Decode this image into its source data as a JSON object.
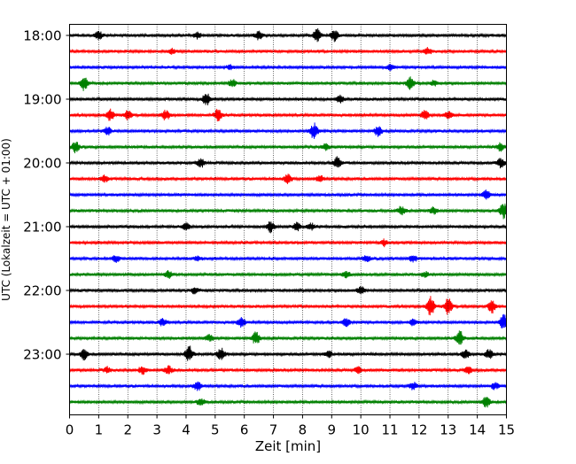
{
  "chart_data": {
    "type": "line",
    "xlabel": "Zeit  [min]",
    "ylabel": "UTC (Lokalzeit = UTC + 01:00)",
    "xlim": [
      0,
      15
    ],
    "x_ticks": [
      0,
      1,
      2,
      3,
      4,
      5,
      6,
      7,
      8,
      9,
      10,
      11,
      12,
      13,
      14,
      15
    ],
    "x_tick_labels": [
      "0",
      "1",
      "2",
      "3",
      "4",
      "5",
      "6",
      "7",
      "8",
      "9",
      "10",
      "11",
      "12",
      "13",
      "14",
      "15"
    ],
    "y_tick_labels": [
      "18:00",
      "19:00",
      "20:00",
      "21:00",
      "22:00",
      "23:00"
    ],
    "vertical_grid": true,
    "row_start_hour": 18,
    "row_interval_min": 15,
    "row_count": 24,
    "row_colors": [
      "#000000",
      "#ff0000",
      "#0000ff",
      "#008000"
    ],
    "bursts": [
      [
        [
          1.0,
          0.6
        ],
        [
          4.4,
          0.5
        ],
        [
          6.5,
          0.7
        ],
        [
          8.5,
          1.0
        ],
        [
          9.1,
          0.9
        ]
      ],
      [
        [
          3.5,
          0.4
        ],
        [
          12.3,
          0.5
        ]
      ],
      [
        [
          5.5,
          0.3
        ],
        [
          11.0,
          0.4
        ]
      ],
      [
        [
          0.5,
          1.1
        ],
        [
          5.6,
          0.6
        ],
        [
          11.7,
          0.9
        ],
        [
          12.5,
          0.4
        ]
      ],
      [
        [
          4.7,
          1.0
        ],
        [
          9.3,
          0.5
        ]
      ],
      [
        [
          1.4,
          0.9
        ],
        [
          2.0,
          0.7
        ],
        [
          3.3,
          0.8
        ],
        [
          5.1,
          0.9
        ],
        [
          12.2,
          0.8
        ],
        [
          13.0,
          0.6
        ]
      ],
      [
        [
          1.3,
          0.7
        ],
        [
          8.4,
          1.3
        ],
        [
          10.6,
          0.8
        ]
      ],
      [
        [
          0.2,
          0.9
        ],
        [
          8.8,
          0.5
        ],
        [
          14.8,
          0.6
        ]
      ],
      [
        [
          4.5,
          0.7
        ],
        [
          9.2,
          0.9
        ],
        [
          14.8,
          0.7
        ]
      ],
      [
        [
          1.2,
          0.5
        ],
        [
          7.5,
          0.7
        ],
        [
          8.6,
          0.5
        ]
      ],
      [
        [
          14.3,
          0.7
        ]
      ],
      [
        [
          11.4,
          0.7
        ],
        [
          12.5,
          0.5
        ],
        [
          14.9,
          1.2
        ]
      ],
      [
        [
          4.0,
          0.5
        ],
        [
          6.9,
          0.9
        ],
        [
          7.8,
          0.6
        ],
        [
          8.3,
          0.5
        ]
      ],
      [
        [
          10.8,
          0.5
        ]
      ],
      [
        [
          1.6,
          0.5
        ],
        [
          4.4,
          0.4
        ],
        [
          10.2,
          0.5
        ],
        [
          11.8,
          0.5
        ]
      ],
      [
        [
          3.4,
          0.6
        ],
        [
          9.5,
          0.5
        ],
        [
          12.2,
          0.4
        ]
      ],
      [
        [
          4.3,
          0.5
        ],
        [
          10.0,
          0.6
        ]
      ],
      [
        [
          12.4,
          1.6
        ],
        [
          13.0,
          1.3
        ],
        [
          14.5,
          1.0
        ]
      ],
      [
        [
          3.2,
          0.6
        ],
        [
          5.9,
          0.8
        ],
        [
          9.5,
          0.6
        ],
        [
          11.8,
          0.5
        ],
        [
          14.9,
          1.2
        ]
      ],
      [
        [
          4.8,
          0.5
        ],
        [
          6.4,
          1.0
        ],
        [
          13.4,
          1.1
        ]
      ],
      [
        [
          0.5,
          0.8
        ],
        [
          4.1,
          1.3
        ],
        [
          5.2,
          0.9
        ],
        [
          8.9,
          0.5
        ],
        [
          13.6,
          0.7
        ],
        [
          14.4,
          0.7
        ]
      ],
      [
        [
          1.3,
          0.5
        ],
        [
          2.5,
          0.6
        ],
        [
          3.4,
          0.6
        ],
        [
          9.9,
          0.6
        ],
        [
          13.7,
          0.6
        ]
      ],
      [
        [
          4.4,
          0.7
        ],
        [
          11.8,
          0.6
        ],
        [
          14.6,
          0.5
        ]
      ],
      [
        [
          4.5,
          0.6
        ],
        [
          14.3,
          0.8
        ]
      ]
    ]
  }
}
